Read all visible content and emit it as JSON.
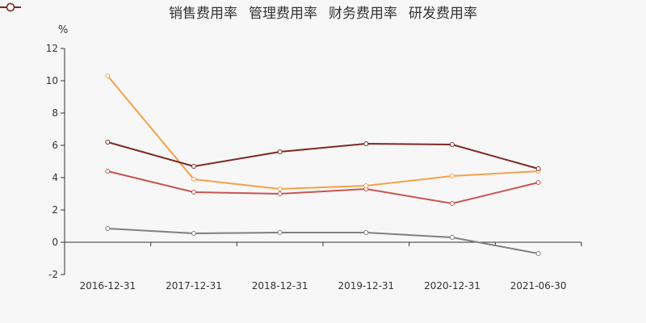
{
  "chart_data": {
    "type": "line",
    "y_unit": "%",
    "categories": [
      "2016-12-31",
      "2017-12-31",
      "2018-12-31",
      "2019-12-31",
      "2020-12-31",
      "2021-06-30"
    ],
    "ylim": [
      -2,
      12
    ],
    "yticks": [
      -2,
      0,
      2,
      4,
      6,
      8,
      10,
      12
    ],
    "grid": false,
    "legend_position": "top",
    "series": [
      {
        "name": "销售费用率",
        "color": "#c8554e",
        "values": [
          4.4,
          3.1,
          3.0,
          3.3,
          2.4,
          3.7
        ]
      },
      {
        "name": "管理费用率",
        "color": "#f5a04b",
        "values": [
          10.3,
          3.9,
          3.3,
          3.5,
          4.1,
          4.4
        ]
      },
      {
        "name": "财务费用率",
        "color": "#808080",
        "values": [
          0.85,
          0.55,
          0.6,
          0.6,
          0.3,
          -0.7
        ]
      },
      {
        "name": "研发费用率",
        "color": "#7c2a24",
        "values": [
          6.2,
          4.7,
          5.6,
          6.1,
          6.05,
          4.55
        ]
      }
    ]
  }
}
